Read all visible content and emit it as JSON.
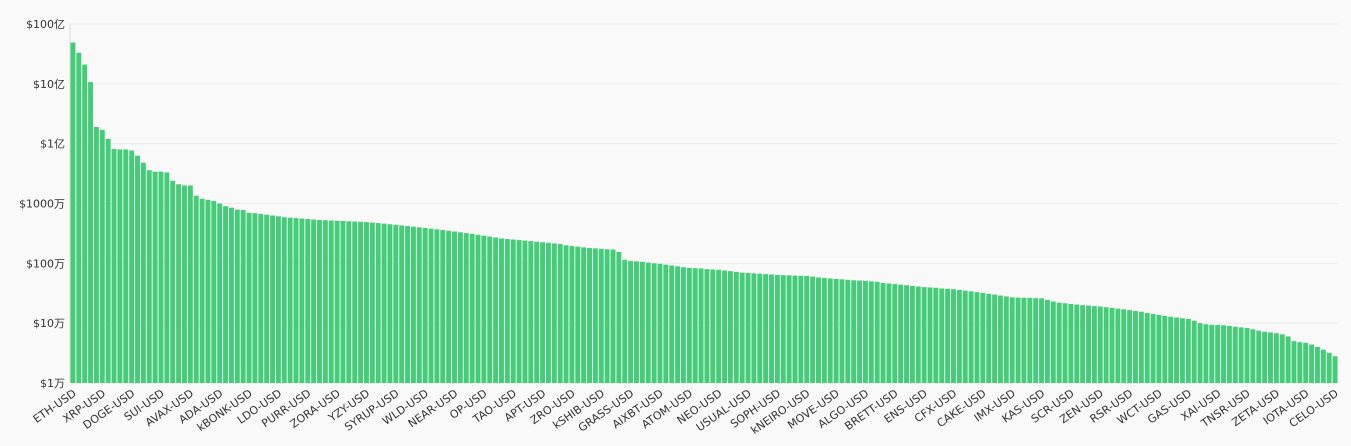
{
  "chart_data": {
    "type": "bar",
    "log_scale": true,
    "grid": true,
    "color": "#45cc78",
    "ylim": [
      10000,
      10000000000
    ],
    "yticks": [
      {
        "value": 10000,
        "label": "$1万"
      },
      {
        "value": 100000,
        "label": "$10万"
      },
      {
        "value": 1000000,
        "label": "$100万"
      },
      {
        "value": 10000000,
        "label": "$1000万"
      },
      {
        "value": 100000000,
        "label": "$1亿"
      },
      {
        "value": 1000000000,
        "label": "$10亿"
      },
      {
        "value": 10000000000,
        "label": "$100亿"
      }
    ],
    "categories": [
      "ETH-USD",
      null,
      null,
      null,
      null,
      "XRP-USD",
      null,
      null,
      null,
      null,
      "DOGE-USD",
      null,
      null,
      null,
      null,
      "SUI-USD",
      null,
      null,
      null,
      null,
      "AVAX-USD",
      null,
      null,
      null,
      null,
      "ADA-USD",
      null,
      null,
      null,
      null,
      "kBONK-USD",
      null,
      null,
      null,
      null,
      "LDO-USD",
      null,
      null,
      null,
      null,
      "PURR-USD",
      null,
      null,
      null,
      null,
      "ZORA-USD",
      null,
      null,
      null,
      null,
      "YZY-USD",
      null,
      null,
      null,
      null,
      "SYRUP-USD",
      null,
      null,
      null,
      null,
      "WLD-USD",
      null,
      null,
      null,
      null,
      "NEAR-USD",
      null,
      null,
      null,
      null,
      "OP-USD",
      null,
      null,
      null,
      null,
      "TAO-USD",
      null,
      null,
      null,
      null,
      "APT-USD",
      null,
      null,
      null,
      null,
      "ZRO-USD",
      null,
      null,
      null,
      null,
      "kSHIB-USD",
      null,
      null,
      null,
      null,
      "GRASS-USD",
      null,
      null,
      null,
      null,
      "AIXBT-USD",
      null,
      null,
      null,
      null,
      "ATOM-USD",
      null,
      null,
      null,
      null,
      "NEO-USD",
      null,
      null,
      null,
      null,
      "USUAL-USD",
      null,
      null,
      null,
      null,
      "SOPH-USD",
      null,
      null,
      null,
      null,
      "kNEIRO-USD",
      null,
      null,
      null,
      null,
      "MOVE-USD",
      null,
      null,
      null,
      null,
      "ALGO-USD",
      null,
      null,
      null,
      null,
      "BRETT-USD",
      null,
      null,
      null,
      null,
      "ENS-USD",
      null,
      null,
      null,
      null,
      "CFX-USD",
      null,
      null,
      null,
      null,
      "CAKE-USD",
      null,
      null,
      null,
      null,
      "IMX-USD",
      null,
      null,
      null,
      null,
      "KAS-USD",
      null,
      null,
      null,
      null,
      "SCR-USD",
      null,
      null,
      null,
      null,
      "ZEN-USD",
      null,
      null,
      null,
      null,
      "RSR-USD",
      null,
      null,
      null,
      null,
      "WCT-USD",
      null,
      null,
      null,
      null,
      "GAS-USD",
      null,
      null,
      null,
      null,
      "XAI-USD",
      null,
      null,
      null,
      null,
      "TNSR-USD",
      null,
      null,
      null,
      null,
      "ZETA-USD",
      null,
      null,
      null,
      null,
      "IOTA-USD",
      null,
      null,
      null,
      null,
      "CELO-USD"
    ],
    "values": [
      4900000000,
      3300000000,
      2100000000,
      1070000000,
      190000000,
      170000000,
      120000000,
      82000000,
      80000000,
      80000000,
      77000000,
      63000000,
      48000000,
      36000000,
      34000000,
      34000000,
      33000000,
      24000000,
      21000000,
      20000000,
      20000000,
      13500000,
      12000000,
      11500000,
      11000000,
      10000000,
      9000000,
      8500000,
      7900000,
      7800000,
      7000000,
      6900000,
      6700000,
      6500000,
      6300000,
      6100000,
      5900000,
      5800000,
      5700000,
      5600000,
      5500000,
      5400000,
      5300000,
      5250000,
      5200000,
      5150000,
      5100000,
      5050000,
      5000000,
      4950000,
      4900000,
      4800000,
      4700000,
      4600000,
      4500000,
      4400000,
      4300000,
      4200000,
      4100000,
      4000000,
      3900000,
      3800000,
      3700000,
      3600000,
      3500000,
      3400000,
      3300000,
      3200000,
      3100000,
      3000000,
      2900000,
      2800000,
      2700000,
      2600000,
      2550000,
      2500000,
      2450000,
      2400000,
      2350000,
      2300000,
      2250000,
      2200000,
      2150000,
      2100000,
      2000000,
      1950000,
      1900000,
      1850000,
      1800000,
      1780000,
      1750000,
      1720000,
      1700000,
      1550000,
      1150000,
      1100000,
      1080000,
      1060000,
      1030000,
      1000000,
      980000,
      950000,
      920000,
      890000,
      860000,
      840000,
      830000,
      820000,
      800000,
      790000,
      780000,
      760000,
      740000,
      720000,
      700000,
      690000,
      680000,
      670000,
      660000,
      650000,
      640000,
      635000,
      630000,
      625000,
      620000,
      615000,
      600000,
      580000,
      570000,
      560000,
      550000,
      540000,
      530000,
      520000,
      515000,
      510000,
      500000,
      490000,
      470000,
      460000,
      450000,
      440000,
      430000,
      420000,
      410000,
      400000,
      395000,
      390000,
      380000,
      375000,
      370000,
      360000,
      350000,
      340000,
      330000,
      320000,
      310000,
      300000,
      290000,
      280000,
      270000,
      268000,
      266000,
      264000,
      262000,
      260000,
      245000,
      230000,
      220000,
      215000,
      210000,
      205000,
      200000,
      197000,
      193000,
      190000,
      185000,
      180000,
      175000,
      170000,
      165000,
      160000,
      155000,
      148000,
      142000,
      137000,
      132000,
      128000,
      124000,
      121000,
      118000,
      110000,
      100000,
      96000,
      94000,
      93000,
      92000,
      90000,
      87000,
      85000,
      83000,
      79000,
      75000,
      72000,
      70000,
      68000,
      65000,
      60000,
      50000,
      48000,
      47000,
      44000,
      40000,
      36000,
      32000,
      28000
    ]
  }
}
